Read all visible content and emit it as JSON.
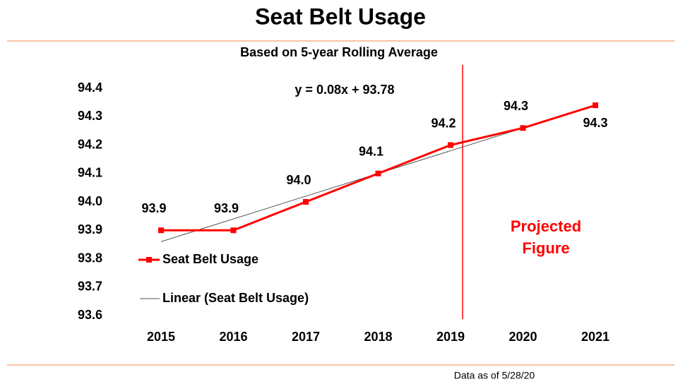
{
  "chart_data": {
    "type": "line",
    "title": "Seat Belt Usage",
    "subtitle": "Based on 5-year Rolling Average",
    "footnote": "Data as of 5/28/20",
    "equation": "y = 0.08x + 93.78",
    "projection_note": [
      "Projected",
      "Figure"
    ],
    "categories": [
      "2015",
      "2016",
      "2017",
      "2018",
      "2019",
      "2020",
      "2021"
    ],
    "series": [
      {
        "name": "Seat Belt Usage",
        "color": "#ff0000",
        "values": [
          93.9,
          93.9,
          94.0,
          94.1,
          94.2,
          94.26,
          94.34
        ],
        "value_labels": [
          "93.9",
          "93.9",
          "94.0",
          "94.1",
          "94.2",
          "94.3",
          "94.3"
        ]
      },
      {
        "name": "Linear (Seat Belt Usage)",
        "color": "#555555",
        "values": [
          93.86,
          93.94,
          94.02,
          94.1,
          94.18,
          94.26,
          94.34
        ]
      }
    ],
    "ylim": [
      93.6,
      94.4
    ],
    "yticks": [
      93.6,
      93.7,
      93.8,
      93.9,
      {
        "value": 94,
        "label": "94.0"
      },
      94.1,
      94.2,
      94.3,
      94.4
    ],
    "grid": false
  }
}
